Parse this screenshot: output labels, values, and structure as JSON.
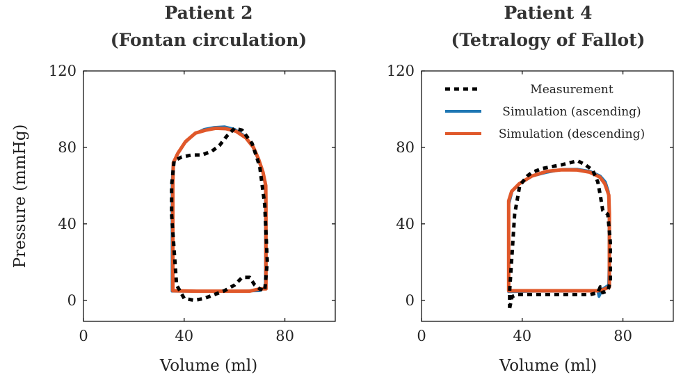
{
  "chart_data": [
    {
      "type": "line",
      "title_line1": "Patient 2",
      "title_line2": "(Fontan circulation)",
      "xlabel": "Volume (ml)",
      "ylabel": "Pressure (mmHg)",
      "xlim": [
        0,
        100
      ],
      "ylim": [
        -11,
        120
      ],
      "xticks": [
        0,
        40,
        80
      ],
      "yticks": [
        0,
        40,
        80,
        120
      ],
      "legend": "none",
      "series": [
        {
          "name": "Measurement",
          "color": "#000000",
          "style": "dashed",
          "points": [
            [
              35,
              45
            ],
            [
              37,
              8
            ],
            [
              40,
              1
            ],
            [
              44,
              0
            ],
            [
              48,
              1
            ],
            [
              52,
              3
            ],
            [
              56,
              5
            ],
            [
              60,
              8
            ],
            [
              63,
              12
            ],
            [
              66,
              12
            ],
            [
              68,
              8
            ],
            [
              70,
              6
            ],
            [
              72,
              5
            ],
            [
              73,
              20
            ],
            [
              72,
              50
            ],
            [
              70,
              70
            ],
            [
              67,
              82
            ],
            [
              63,
              89
            ],
            [
              60,
              90
            ],
            [
              57,
              86
            ],
            [
              54,
              81
            ],
            [
              51,
              78
            ],
            [
              47,
              76
            ],
            [
              43,
              76
            ],
            [
              39,
              75
            ],
            [
              36,
              73
            ],
            [
              35,
              60
            ],
            [
              35,
              45
            ]
          ]
        },
        {
          "name": "Simulation (ascending)",
          "color": "#1f77b4",
          "style": "solid",
          "points": [
            [
              35.2,
              4.8
            ],
            [
              35.2,
              60
            ],
            [
              35.5,
              70
            ],
            [
              37,
              76
            ],
            [
              40,
              82
            ],
            [
              44,
              87
            ],
            [
              48,
              89.5
            ],
            [
              52,
              90.5
            ],
            [
              56,
              90.8
            ],
            [
              60,
              89.5
            ],
            [
              64,
              86
            ],
            [
              67,
              81
            ],
            [
              69,
              75
            ],
            [
              71,
              68
            ],
            [
              72.2,
              62
            ],
            [
              72.3,
              50
            ],
            [
              72.3,
              20
            ],
            [
              72.2,
              7
            ],
            [
              70,
              5
            ],
            [
              60,
              4.8
            ],
            [
              45,
              4.8
            ],
            [
              35.2,
              4.8
            ]
          ]
        },
        {
          "name": "Simulation (descending)",
          "color": "#e0582a",
          "style": "solid",
          "points": [
            [
              35.5,
              5
            ],
            [
              35.5,
              60
            ],
            [
              35.7,
              72
            ],
            [
              37.5,
              77
            ],
            [
              40.5,
              83
            ],
            [
              44.5,
              87.5
            ],
            [
              48.5,
              89
            ],
            [
              52.5,
              90
            ],
            [
              56.5,
              89.8
            ],
            [
              60.5,
              88.5
            ],
            [
              64.5,
              85
            ],
            [
              67.5,
              80
            ],
            [
              69.5,
              74
            ],
            [
              71.3,
              67
            ],
            [
              72.4,
              60
            ],
            [
              72.5,
              50
            ],
            [
              72.5,
              20
            ],
            [
              72.5,
              6
            ],
            [
              70,
              6
            ],
            [
              66,
              4.8
            ],
            [
              60,
              4.8
            ],
            [
              45,
              4.8
            ],
            [
              35.5,
              5
            ]
          ]
        }
      ]
    },
    {
      "type": "line",
      "title_line1": "Patient 4",
      "title_line2": "(Tetralogy of Fallot)",
      "xlabel": "Volume (ml)",
      "ylabel": "",
      "xlim": [
        0,
        100
      ],
      "ylim": [
        -11,
        120
      ],
      "xticks": [
        0,
        40,
        80
      ],
      "yticks": [
        0,
        40,
        80,
        120
      ],
      "legend": "top-right",
      "series": [
        {
          "name": "Measurement",
          "color": "#000000",
          "style": "dashed",
          "points": [
            [
              35,
              -4
            ],
            [
              36,
              2
            ],
            [
              38,
              3
            ],
            [
              42,
              3
            ],
            [
              50,
              3
            ],
            [
              60,
              3
            ],
            [
              67,
              3
            ],
            [
              70,
              4
            ],
            [
              71,
              7
            ],
            [
              72,
              4
            ],
            [
              74,
              5
            ],
            [
              75,
              10
            ],
            [
              75,
              30
            ],
            [
              74,
              45
            ],
            [
              72,
              47
            ],
            [
              71,
              55
            ],
            [
              70,
              62
            ],
            [
              68,
              68
            ],
            [
              65,
              71
            ],
            [
              62,
              73
            ],
            [
              59,
              72
            ],
            [
              56,
              71
            ],
            [
              52,
              70
            ],
            [
              48,
              69
            ],
            [
              44,
              67
            ],
            [
              42,
              65
            ],
            [
              39,
              60
            ],
            [
              37,
              45
            ],
            [
              36,
              25
            ],
            [
              35,
              5
            ],
            [
              35,
              -4
            ]
          ]
        },
        {
          "name": "Simulation (ascending)",
          "color": "#1f77b4",
          "style": "solid",
          "points": [
            [
              34.6,
              4.5
            ],
            [
              34.6,
              50
            ],
            [
              36,
              57
            ],
            [
              39,
              61
            ],
            [
              44,
              65
            ],
            [
              50,
              67
            ],
            [
              56,
              68.5
            ],
            [
              62,
              68.6
            ],
            [
              67,
              67.5
            ],
            [
              71,
              65
            ],
            [
              73,
              62
            ],
            [
              74.2,
              57
            ],
            [
              74.5,
              45
            ],
            [
              74.5,
              20
            ],
            [
              74.3,
              8
            ],
            [
              72,
              6
            ],
            [
              70.5,
              2
            ],
            [
              70,
              5
            ],
            [
              60,
              4.8
            ],
            [
              45,
              4.8
            ],
            [
              34.6,
              4.5
            ]
          ]
        },
        {
          "name": "Simulation (descending)",
          "color": "#e0582a",
          "style": "solid",
          "points": [
            [
              34.6,
              5
            ],
            [
              34.6,
              52
            ],
            [
              35.8,
              57
            ],
            [
              38.8,
              61
            ],
            [
              43.8,
              65
            ],
            [
              49.8,
              67.5
            ],
            [
              55.8,
              68.3
            ],
            [
              61.8,
              68.2
            ],
            [
              66.8,
              67
            ],
            [
              70.8,
              64.5
            ],
            [
              72.8,
              61
            ],
            [
              74.4,
              55
            ],
            [
              74.6,
              45
            ],
            [
              74.6,
              20
            ],
            [
              74.6,
              7
            ],
            [
              72,
              5.5
            ],
            [
              70,
              5
            ],
            [
              60,
              5
            ],
            [
              45,
              5
            ],
            [
              34.6,
              5
            ]
          ]
        }
      ]
    }
  ]
}
